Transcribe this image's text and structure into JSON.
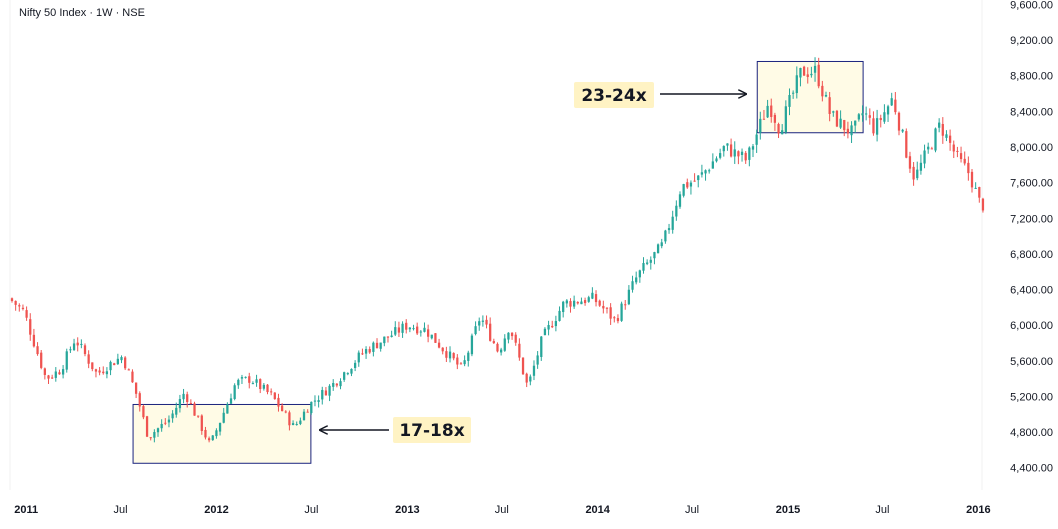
{
  "chart_data": {
    "type": "candlestick",
    "title": "Nifty 50 Index · 1W · NSE",
    "y_axis": {
      "position": "right",
      "ticks": [
        "4,400.00",
        "4,800.00",
        "5,200.00",
        "5,600.00",
        "6,000.00",
        "6,400.00",
        "6,800.00",
        "7,200.00",
        "7,600.00",
        "8,000.00",
        "8,400.00",
        "8,800.00",
        "9,200.00",
        "9,600.00"
      ],
      "tick_values": [
        4400,
        4800,
        5200,
        5600,
        6000,
        6400,
        6800,
        7200,
        7600,
        8000,
        8400,
        8800,
        9200,
        9600
      ],
      "range": [
        4150,
        9650
      ]
    },
    "x_axis": {
      "ticks": [
        {
          "label": "2011",
          "date": "2011-01-01",
          "major": true
        },
        {
          "label": "Jul",
          "date": "2011-07-01",
          "major": false
        },
        {
          "label": "2012",
          "date": "2012-01-01",
          "major": true
        },
        {
          "label": "Jul",
          "date": "2012-07-01",
          "major": false
        },
        {
          "label": "2013",
          "date": "2013-01-01",
          "major": true
        },
        {
          "label": "Jul",
          "date": "2013-07-01",
          "major": false
        },
        {
          "label": "2014",
          "date": "2014-01-01",
          "major": true
        },
        {
          "label": "Jul",
          "date": "2014-07-01",
          "major": false
        },
        {
          "label": "2015",
          "date": "2015-01-01",
          "major": true
        },
        {
          "label": "Jul",
          "date": "2015-07-01",
          "major": false
        },
        {
          "label": "2016",
          "date": "2016-01-01",
          "major": true
        }
      ],
      "range": [
        "2010-12-01",
        "2016-01-08"
      ]
    },
    "colors": {
      "up": "#26a69a",
      "down": "#ef5350",
      "box_fill": "#fffbe6",
      "box_border": "#1a237e",
      "label_bg": "#fff3c4",
      "text": "#131722"
    },
    "price_path": [
      [
        "2010-12-03",
        6300
      ],
      [
        "2010-12-31",
        6150
      ],
      [
        "2011-02-11",
        5400
      ],
      [
        "2011-03-11",
        5500
      ],
      [
        "2011-04-08",
        5850
      ],
      [
        "2011-05-20",
        5450
      ],
      [
        "2011-06-10",
        5550
      ],
      [
        "2011-07-08",
        5650
      ],
      [
        "2011-08-05",
        5200
      ],
      [
        "2011-08-26",
        4750
      ],
      [
        "2011-10-07",
        4950
      ],
      [
        "2011-11-04",
        5250
      ],
      [
        "2011-12-23",
        4650
      ],
      [
        "2012-02-10",
        5350
      ],
      [
        "2012-03-09",
        5400
      ],
      [
        "2012-04-20",
        5200
      ],
      [
        "2012-06-01",
        4850
      ],
      [
        "2012-06-29",
        5100
      ],
      [
        "2012-08-17",
        5350
      ],
      [
        "2012-10-12",
        5700
      ],
      [
        "2013-01-04",
        6000
      ],
      [
        "2013-02-08",
        5950
      ],
      [
        "2013-04-19",
        5500
      ],
      [
        "2013-05-24",
        6100
      ],
      [
        "2013-06-28",
        5700
      ],
      [
        "2013-07-19",
        6000
      ],
      [
        "2013-08-23",
        5300
      ],
      [
        "2013-09-20",
        5850
      ],
      [
        "2013-11-01",
        6250
      ],
      [
        "2013-12-27",
        6300
      ],
      [
        "2014-02-07",
        6050
      ],
      [
        "2014-03-21",
        6550
      ],
      [
        "2014-05-09",
        6900
      ],
      [
        "2014-06-13",
        7550
      ],
      [
        "2014-07-18",
        7650
      ],
      [
        "2014-09-05",
        8000
      ],
      [
        "2014-10-17",
        7850
      ],
      [
        "2014-11-28",
        8500
      ],
      [
        "2014-12-19",
        8200
      ],
      [
        "2015-01-30",
        8850
      ],
      [
        "2015-02-27",
        8850
      ],
      [
        "2015-03-27",
        8350
      ],
      [
        "2015-05-08",
        8150
      ],
      [
        "2015-05-29",
        8400
      ],
      [
        "2015-06-19",
        8200
      ],
      [
        "2015-07-24",
        8550
      ],
      [
        "2015-08-21",
        7900
      ],
      [
        "2015-09-04",
        7650
      ],
      [
        "2015-10-23",
        8250
      ],
      [
        "2015-11-27",
        7850
      ],
      [
        "2015-12-18",
        7700
      ],
      [
        "2016-01-08",
        7350
      ]
    ],
    "annotations": [
      {
        "label": "17-18x",
        "start": "2011-07-25",
        "end": "2012-06-30",
        "low": 4450,
        "high": 5110
      },
      {
        "label": "23-24x",
        "start": "2014-11-03",
        "end": "2015-05-25",
        "low": 8160,
        "high": 8960
      }
    ]
  }
}
